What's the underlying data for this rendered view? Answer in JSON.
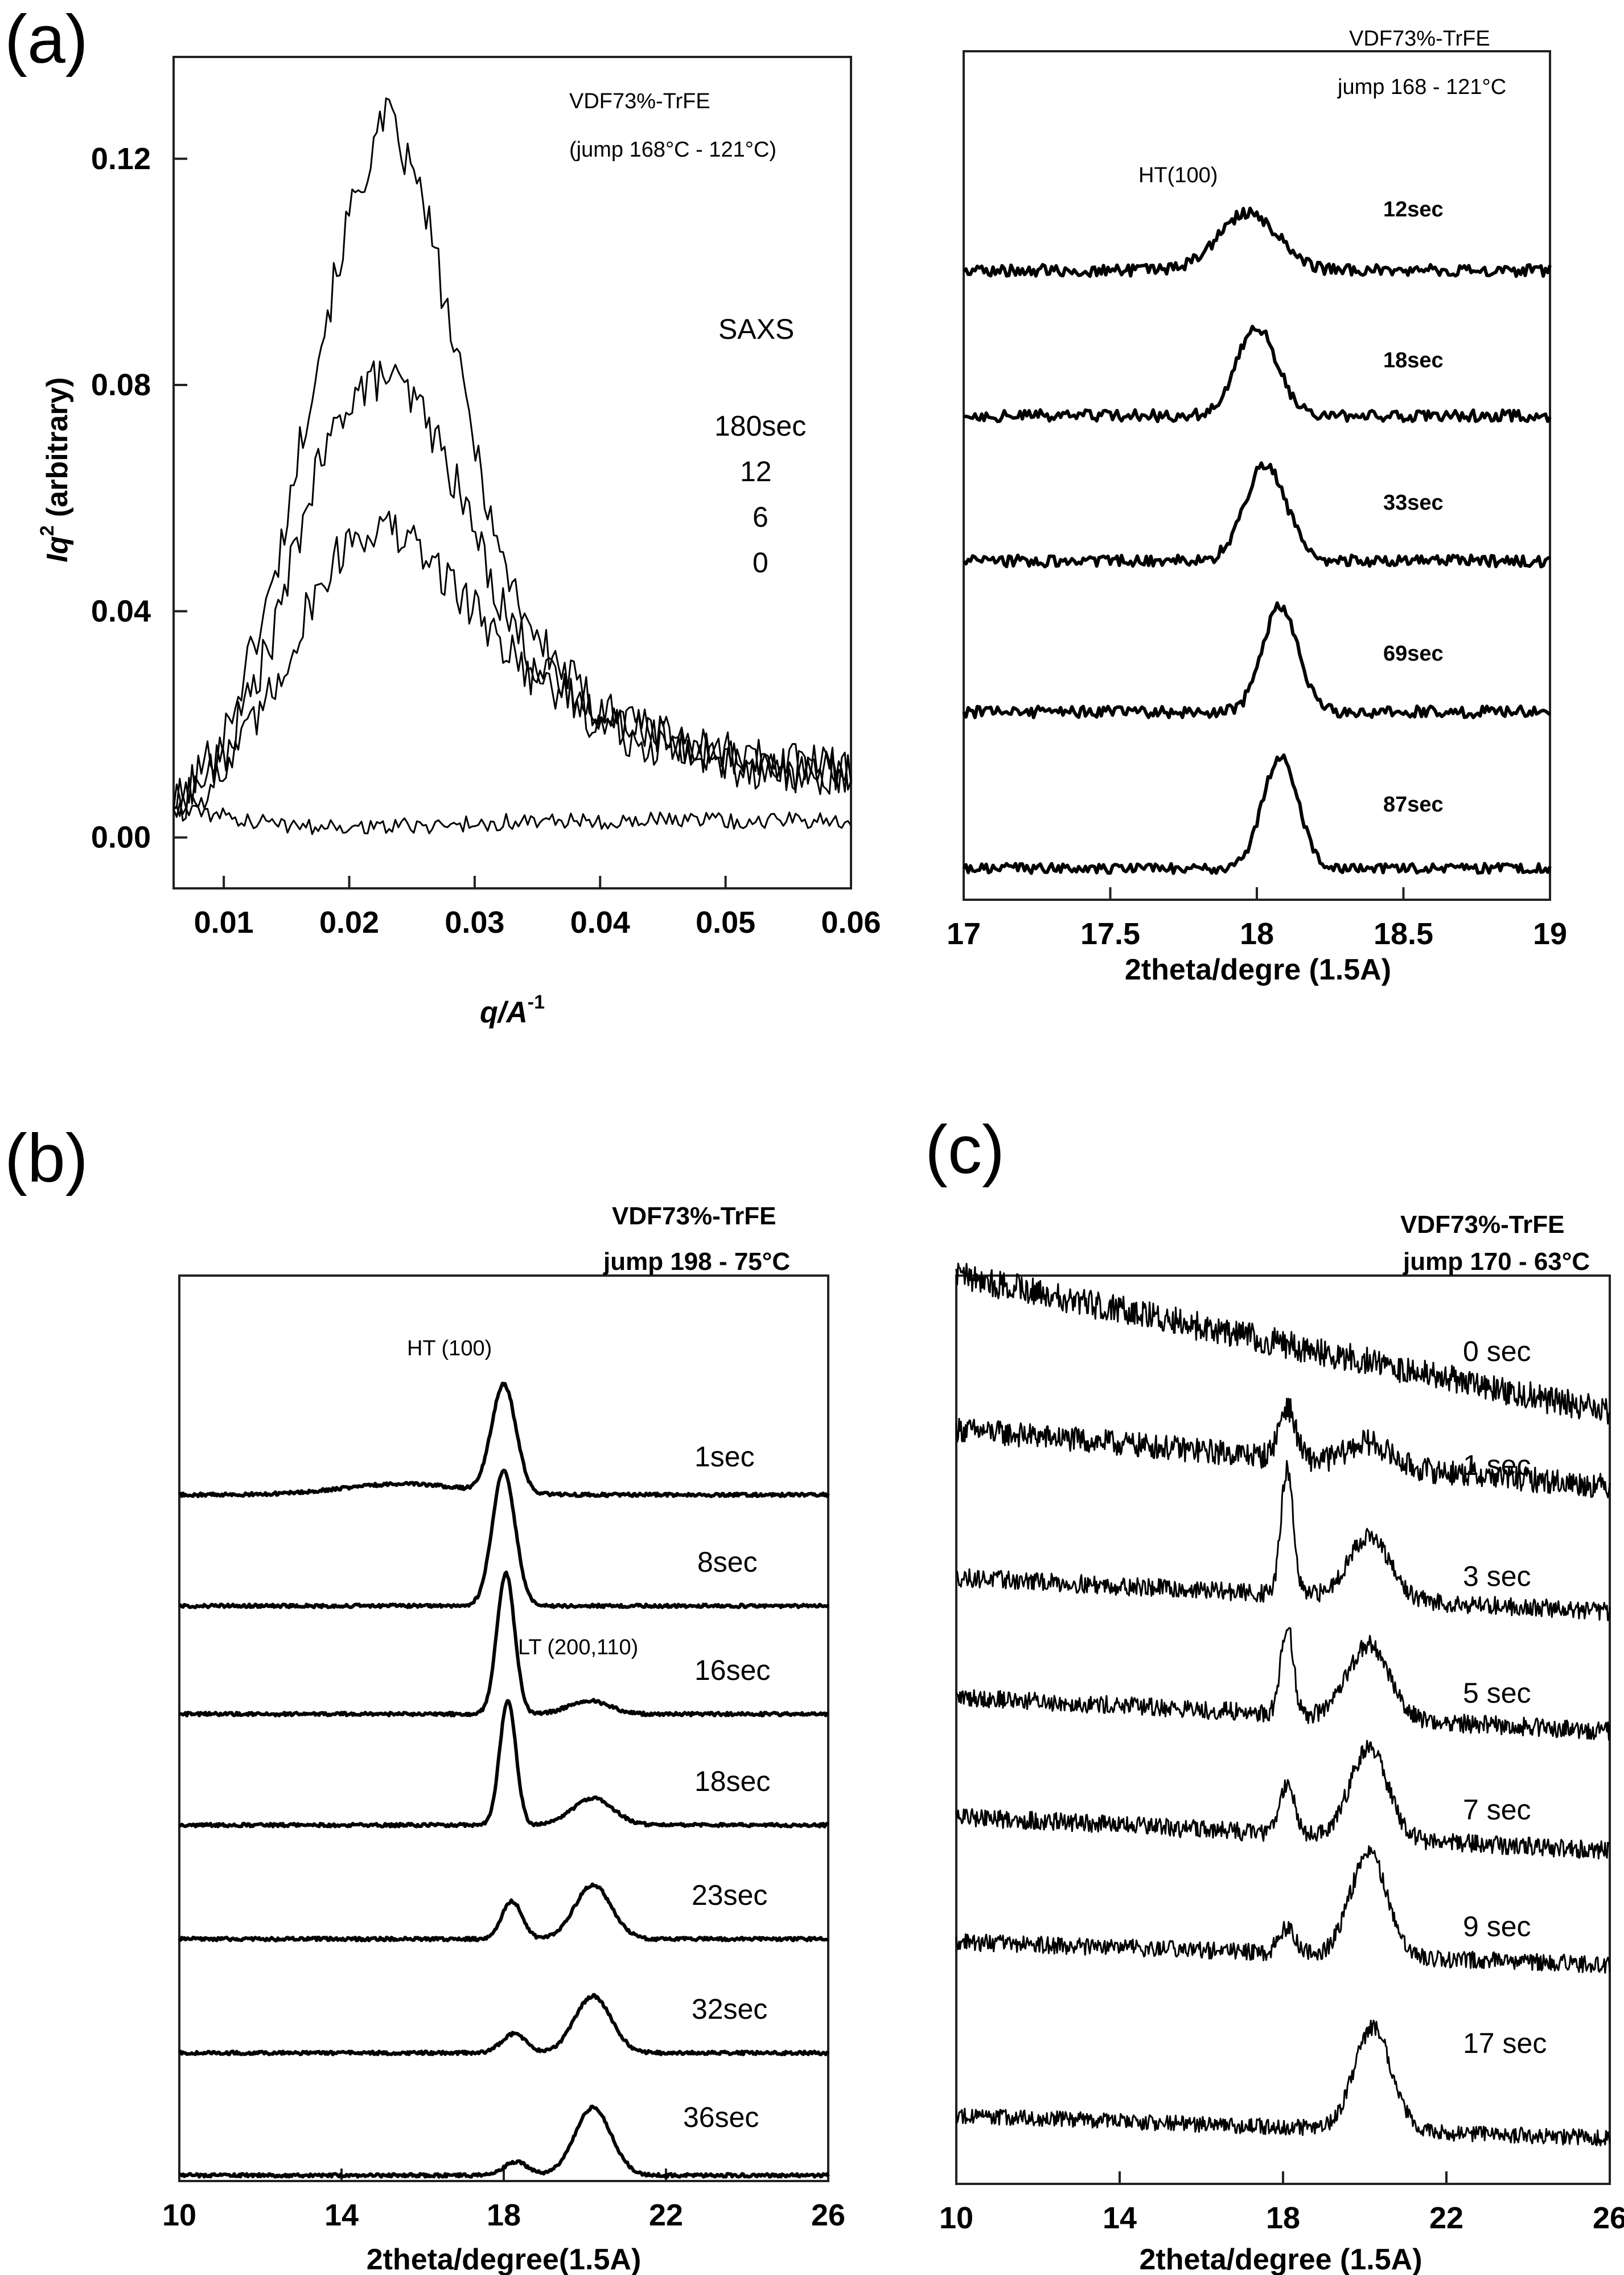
{
  "chart_data": [
    {
      "panel": "(a)",
      "type": "line",
      "title": "VDF73%-TrFE",
      "subtitle": "(jump 168°C - 121°C)",
      "xlabel": "q/A",
      "xlabel_sup": "-1",
      "ylabel": "Iq",
      "ylabel_sup": "2",
      "ylabel_suffix": " (arbitrary)",
      "xlim": [
        0.006,
        0.06
      ],
      "ylim": [
        -0.009,
        0.138
      ],
      "xticks": [
        "0.01",
        "0.02",
        "0.03",
        "0.04",
        "0.05",
        "0.06"
      ],
      "yticks": [
        "0.00",
        "0.04",
        "0.08",
        "0.12"
      ],
      "legend_title": "SAXS",
      "legend_entries": [
        "180sec",
        "12",
        "6",
        "0"
      ],
      "series": [
        {
          "name": "180sec",
          "x": [
            0.006,
            0.01,
            0.014,
            0.017,
            0.02,
            0.023,
            0.026,
            0.029,
            0.032,
            0.035,
            0.04,
            0.045,
            0.05,
            0.055,
            0.06
          ],
          "y": [
            0.005,
            0.018,
            0.045,
            0.08,
            0.11,
            0.128,
            0.112,
            0.08,
            0.05,
            0.035,
            0.022,
            0.018,
            0.014,
            0.012,
            0.011
          ],
          "noise": 0.004
        },
        {
          "name": "12",
          "x": [
            0.006,
            0.01,
            0.014,
            0.017,
            0.02,
            0.023,
            0.026,
            0.029,
            0.032,
            0.035,
            0.04,
            0.045,
            0.05,
            0.055,
            0.06
          ],
          "y": [
            0.005,
            0.014,
            0.036,
            0.062,
            0.078,
            0.082,
            0.075,
            0.06,
            0.042,
            0.03,
            0.02,
            0.016,
            0.013,
            0.012,
            0.011
          ],
          "noise": 0.004
        },
        {
          "name": "6",
          "x": [
            0.006,
            0.01,
            0.014,
            0.017,
            0.02,
            0.023,
            0.026,
            0.029,
            0.032,
            0.035,
            0.04,
            0.045,
            0.05,
            0.055,
            0.06
          ],
          "y": [
            0.005,
            0.011,
            0.026,
            0.042,
            0.053,
            0.055,
            0.05,
            0.043,
            0.035,
            0.028,
            0.022,
            0.018,
            0.015,
            0.013,
            0.012
          ],
          "noise": 0.004
        },
        {
          "name": "0",
          "x": [
            0.006,
            0.015,
            0.025,
            0.035,
            0.045,
            0.055,
            0.06
          ],
          "y": [
            0.005,
            0.002,
            0.002,
            0.003,
            0.003,
            0.003,
            0.003
          ],
          "noise": 0.0015
        }
      ]
    },
    {
      "panel": "(a)",
      "type": "line",
      "title": "VDF73%-TrFE",
      "subtitle": "jump 168 - 121°C",
      "xlabel": "2theta/degre (1.5A)",
      "xlim": [
        17,
        19
      ],
      "xticks": [
        "17",
        "17.5",
        "18",
        "18.5",
        "19"
      ],
      "peak_label": "HT(100)",
      "series": [
        {
          "name": "12sec",
          "peaks": [
            {
              "x": 17.97,
              "h": 0.6,
              "w": 0.1
            }
          ],
          "noise": 0.06
        },
        {
          "name": "18sec",
          "peaks": [
            {
              "x": 18.0,
              "h": 0.9,
              "w": 0.07
            }
          ],
          "noise": 0.06
        },
        {
          "name": "33sec",
          "peaks": [
            {
              "x": 18.03,
              "h": 1.0,
              "w": 0.07
            }
          ],
          "noise": 0.06
        },
        {
          "name": "69sec",
          "peaks": [
            {
              "x": 18.08,
              "h": 1.1,
              "w": 0.06
            }
          ],
          "noise": 0.06
        },
        {
          "name": "87sec",
          "peaks": [
            {
              "x": 18.08,
              "h": 1.15,
              "w": 0.06
            }
          ],
          "noise": 0.05
        }
      ]
    },
    {
      "panel": "(b)",
      "type": "line",
      "title": "VDF73%-TrFE",
      "subtitle": "jump 198 - 75°C",
      "xlabel": "2theta/degree(1.5A)",
      "xlim": [
        10,
        26
      ],
      "xticks": [
        "10",
        "14",
        "18",
        "22",
        "26"
      ],
      "annotations": [
        "HT (100)",
        "LT (200,110)"
      ],
      "series": [
        {
          "name": "1sec",
          "peaks": [
            {
              "x": 18.0,
              "h": 2.0,
              "w": 0.3
            },
            {
              "x": 15.5,
              "h": 0.2,
              "w": 1.5
            }
          ],
          "noise": 0.03
        },
        {
          "name": "8sec",
          "peaks": [
            {
              "x": 18.0,
              "h": 2.5,
              "w": 0.28
            }
          ],
          "noise": 0.03
        },
        {
          "name": "16sec",
          "peaks": [
            {
              "x": 18.05,
              "h": 2.6,
              "w": 0.22
            },
            {
              "x": 20.1,
              "h": 0.25,
              "w": 0.5
            }
          ],
          "noise": 0.03
        },
        {
          "name": "18sec",
          "peaks": [
            {
              "x": 18.1,
              "h": 2.3,
              "w": 0.2
            },
            {
              "x": 20.2,
              "h": 0.5,
              "w": 0.5
            }
          ],
          "noise": 0.03
        },
        {
          "name": "23sec",
          "peaks": [
            {
              "x": 18.2,
              "h": 0.7,
              "w": 0.25
            },
            {
              "x": 20.2,
              "h": 1.0,
              "w": 0.45
            }
          ],
          "noise": 0.03
        },
        {
          "name": "32sec",
          "peaks": [
            {
              "x": 18.25,
              "h": 0.35,
              "w": 0.3
            },
            {
              "x": 20.2,
              "h": 1.05,
              "w": 0.45
            }
          ],
          "noise": 0.03
        },
        {
          "name": "36sec",
          "peaks": [
            {
              "x": 18.3,
              "h": 0.25,
              "w": 0.3
            },
            {
              "x": 20.2,
              "h": 1.25,
              "w": 0.45
            }
          ],
          "noise": 0.03
        }
      ]
    },
    {
      "panel": "(c)",
      "type": "line",
      "title": "VDF73%-TrFE",
      "subtitle": "jump 170 - 63°C",
      "xlabel": "2theta/degree (1.5A)",
      "xlim": [
        10,
        26
      ],
      "xticks": [
        "10",
        "14",
        "18",
        "22",
        "26"
      ],
      "series": [
        {
          "name": "0 sec",
          "slope": -1.2,
          "peaks": [],
          "noise": 0.25
        },
        {
          "name": "1 sec",
          "slope": -0.5,
          "peaks": [
            {
              "x": 18.1,
              "h": 0.9,
              "w": 0.2
            },
            {
              "x": 20.1,
              "h": 0.4,
              "w": 0.5
            }
          ],
          "noise": 0.22
        },
        {
          "name": "3 sec",
          "slope": -0.3,
          "peaks": [
            {
              "x": 18.1,
              "h": 2.2,
              "w": 0.15
            },
            {
              "x": 20.1,
              "h": 1.1,
              "w": 0.5
            }
          ],
          "noise": 0.16
        },
        {
          "name": "5 sec",
          "slope": -0.3,
          "peaks": [
            {
              "x": 18.1,
              "h": 1.6,
              "w": 0.15
            },
            {
              "x": 20.1,
              "h": 1.3,
              "w": 0.5
            }
          ],
          "noise": 0.16
        },
        {
          "name": "7 sec",
          "slope": -0.3,
          "peaks": [
            {
              "x": 18.1,
              "h": 0.9,
              "w": 0.18
            },
            {
              "x": 20.1,
              "h": 1.6,
              "w": 0.45
            }
          ],
          "noise": 0.16
        },
        {
          "name": "9 sec",
          "slope": -0.2,
          "peaks": [
            {
              "x": 18.1,
              "h": 0.45,
              "w": 0.2
            },
            {
              "x": 20.1,
              "h": 1.8,
              "w": 0.45
            }
          ],
          "noise": 0.15
        },
        {
          "name": "17 sec",
          "slope": -0.2,
          "peaks": [
            {
              "x": 20.2,
              "h": 1.8,
              "w": 0.45
            }
          ],
          "noise": 0.14
        }
      ]
    }
  ]
}
